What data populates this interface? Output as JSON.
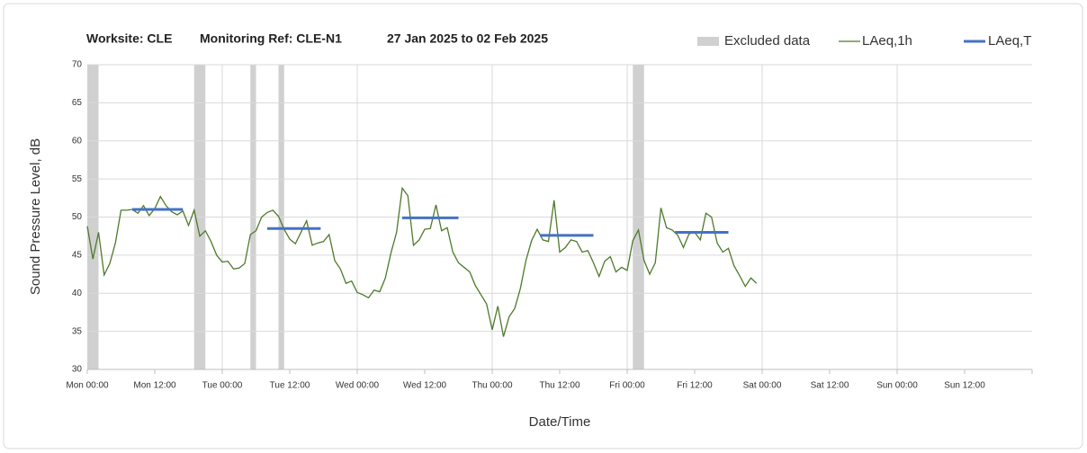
{
  "chart_data": {
    "type": "line",
    "title": [
      "Worksite: CLE",
      "Monitoring Ref: CLE-N1",
      "27 Jan 2025 to 02 Feb 2025"
    ],
    "xlabel": "Date/Time",
    "ylabel": "Sound Pressure Level, dB",
    "xlim": [
      0,
      168
    ],
    "xticks": [
      {
        "value": 0,
        "label": "Mon 00:00"
      },
      {
        "value": 12,
        "label": "Mon 12:00"
      },
      {
        "value": 24,
        "label": "Tue 00:00"
      },
      {
        "value": 36,
        "label": "Tue 12:00"
      },
      {
        "value": 48,
        "label": "Wed 00:00"
      },
      {
        "value": 60,
        "label": "Wed 12:00"
      },
      {
        "value": 72,
        "label": "Thu 00:00"
      },
      {
        "value": 84,
        "label": "Thu 12:00"
      },
      {
        "value": 96,
        "label": "Fri 00:00"
      },
      {
        "value": 108,
        "label": "Fri 12:00"
      },
      {
        "value": 120,
        "label": "Sat 00:00"
      },
      {
        "value": 132,
        "label": "Sat 12:00"
      },
      {
        "value": 144,
        "label": "Sun 00:00"
      },
      {
        "value": 156,
        "label": "Sun 12:00"
      }
    ],
    "ylim": [
      30,
      70
    ],
    "yticks": [
      30,
      35,
      40,
      45,
      50,
      55,
      60,
      65,
      70
    ],
    "grid": true,
    "legend": "top-right",
    "series": [
      {
        "name": "Excluded data",
        "color": "#d0d0d0",
        "ranges": [
          [
            0,
            2
          ],
          [
            19,
            21
          ],
          [
            29,
            30
          ],
          [
            34,
            35
          ],
          [
            97,
            99
          ]
        ]
      },
      {
        "name": "LAeq,1h",
        "color": "#4e7a2b",
        "x": [
          0,
          1,
          2,
          3,
          4,
          5,
          6,
          7,
          8,
          9,
          10,
          11,
          12,
          13,
          14,
          15,
          16,
          17,
          18,
          19,
          20,
          21,
          22,
          23,
          24,
          25,
          26,
          27,
          28,
          29,
          30,
          31,
          32,
          33,
          34,
          35,
          36,
          37,
          38,
          39,
          40,
          41,
          42,
          43,
          44,
          45,
          46,
          47,
          48,
          49,
          50,
          51,
          52,
          53,
          54,
          55,
          56,
          57,
          58,
          59,
          60,
          61,
          62,
          63,
          64,
          65,
          66,
          67,
          68,
          69,
          70,
          71,
          72,
          73,
          74,
          75,
          76,
          77,
          78,
          79,
          80,
          81,
          82,
          83,
          84,
          85,
          86,
          87,
          88,
          89,
          90,
          91,
          92,
          93,
          94,
          95,
          96,
          97,
          98,
          99,
          100,
          101,
          102,
          103,
          104,
          105,
          106,
          107,
          108,
          109,
          110,
          111,
          112,
          113,
          114,
          115,
          116,
          117,
          118,
          119
        ],
        "values": [
          48.8,
          44.5,
          48,
          42.4,
          43.9,
          46.6,
          50.9,
          50.9,
          51,
          50.5,
          51.5,
          50.2,
          51.1,
          52.7,
          51.5,
          50.7,
          50.3,
          50.8,
          48.9,
          50.9,
          47.5,
          48.2,
          46.8,
          45,
          44.1,
          44.2,
          43.2,
          43.3,
          43.9,
          47.7,
          48.2,
          50,
          50.6,
          50.9,
          50.1,
          48.4,
          47.1,
          46.5,
          48,
          49.5,
          46.3,
          46.6,
          46.8,
          47.7,
          44.3,
          43.2,
          41.3,
          41.6,
          40.1,
          39.8,
          39.4,
          40.4,
          40.2,
          42,
          45.3,
          48,
          53.8,
          52.8,
          46.3,
          47,
          48.4,
          48.5,
          51.6,
          48.2,
          48.6,
          45.4,
          44,
          43.4,
          42.8,
          41,
          39.8,
          38.6,
          35.2,
          38.3,
          34.3,
          36.9,
          38,
          40.6,
          44.3,
          46.9,
          48.4,
          47,
          46.8,
          52.2,
          45.4,
          46,
          47,
          46.8,
          45.4,
          45.6,
          44,
          42.2,
          44.2,
          44.8,
          42.8,
          43.4,
          43,
          46.9,
          48.3,
          44.3,
          42.5,
          44,
          51.2,
          48.6,
          48.3,
          47.6,
          46,
          47.8,
          48,
          47,
          50.5,
          50,
          46.6,
          45.4,
          45.9,
          43.6,
          42.3,
          40.9,
          42,
          41.3
        ]
      },
      {
        "name": "LAeq,T",
        "color": "#4472c4",
        "segments": [
          {
            "x": [
              8,
              17
            ],
            "value": 51
          },
          {
            "x": [
              32,
              41.5
            ],
            "value": 48.5
          },
          {
            "x": [
              56,
              66
            ],
            "value": 49.9
          },
          {
            "x": [
              80.5,
              90
            ],
            "value": 47.6
          },
          {
            "x": [
              104.5,
              114
            ],
            "value": 48
          }
        ]
      }
    ]
  }
}
